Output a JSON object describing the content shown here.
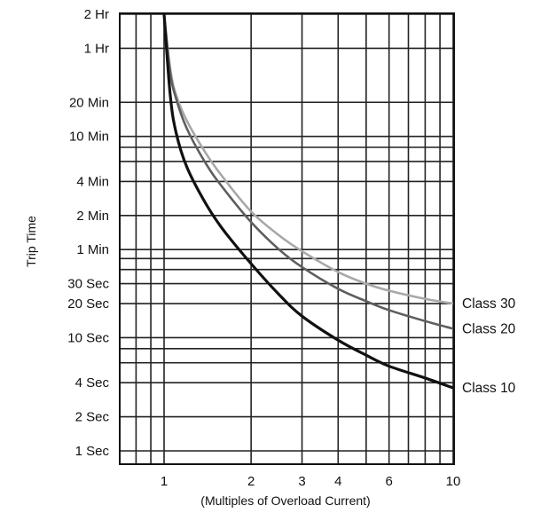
{
  "chart_data": {
    "type": "line",
    "title": "",
    "xlabel": "(Multiples of Overload Current)",
    "ylabel": "Trip Time",
    "x_scale": "log",
    "y_scale": "log",
    "xlim": [
      0.7,
      10
    ],
    "ylim_seconds": [
      0.8,
      7200
    ],
    "grid": true,
    "x_ticks": [
      {
        "value": 1,
        "label": "1"
      },
      {
        "value": 2,
        "label": "2"
      },
      {
        "value": 3,
        "label": "3"
      },
      {
        "value": 4,
        "label": "4"
      },
      {
        "value": 6,
        "label": "6"
      },
      {
        "value": 10,
        "label": "10"
      }
    ],
    "x_gridlines": [
      0.8,
      0.9,
      1,
      2,
      3,
      4,
      5,
      6,
      7,
      8,
      9,
      10
    ],
    "y_ticks": [
      {
        "value": 7200,
        "label": "2 Hr"
      },
      {
        "value": 3600,
        "label": "1 Hr"
      },
      {
        "value": 1200,
        "label": "20 Min"
      },
      {
        "value": 600,
        "label": "10 Min"
      },
      {
        "value": 240,
        "label": "4 Min"
      },
      {
        "value": 120,
        "label": "2 Min"
      },
      {
        "value": 60,
        "label": "1 Min"
      },
      {
        "value": 30,
        "label": "30 Sec"
      },
      {
        "value": 20,
        "label": "20 Sec"
      },
      {
        "value": 10,
        "label": "10 Sec"
      },
      {
        "value": 4,
        "label": "4 Sec"
      },
      {
        "value": 2,
        "label": "2 Sec"
      },
      {
        "value": 1,
        "label": "1 Sec"
      }
    ],
    "y_gridlines": [
      7200,
      3600,
      1200,
      600,
      480,
      360,
      240,
      120,
      60,
      50,
      40,
      30,
      20,
      10,
      8,
      6,
      4,
      2,
      1
    ],
    "series": [
      {
        "name": "Class 30",
        "color": "#a8a8a8",
        "x": [
          1.0,
          1.05,
          1.1,
          1.2,
          1.4,
          1.6,
          2.0,
          2.5,
          3.0,
          4.0,
          5.0,
          6.0,
          8.0,
          10.0
        ],
        "y": [
          7200,
          2400,
          1400,
          820,
          420,
          260,
          130,
          80,
          58,
          38,
          30,
          26,
          22,
          20
        ]
      },
      {
        "name": "Class 20",
        "color": "#5e5e5e",
        "x": [
          1.0,
          1.05,
          1.1,
          1.2,
          1.4,
          1.6,
          2.0,
          2.5,
          3.0,
          4.0,
          5.0,
          6.0,
          8.0,
          10.0
        ],
        "y": [
          7200,
          2200,
          1300,
          700,
          340,
          210,
          105,
          60,
          42,
          27,
          21,
          17.5,
          14,
          12
        ]
      },
      {
        "name": "Class 10",
        "color": "#111111",
        "x": [
          1.0,
          1.05,
          1.1,
          1.2,
          1.4,
          1.6,
          2.0,
          2.5,
          3.0,
          4.0,
          5.0,
          6.0,
          8.0,
          10.0
        ],
        "y": [
          7200,
          1400,
          650,
          320,
          150,
          90,
          45,
          24,
          15.5,
          9.5,
          7,
          5.6,
          4.4,
          3.6
        ]
      }
    ]
  }
}
